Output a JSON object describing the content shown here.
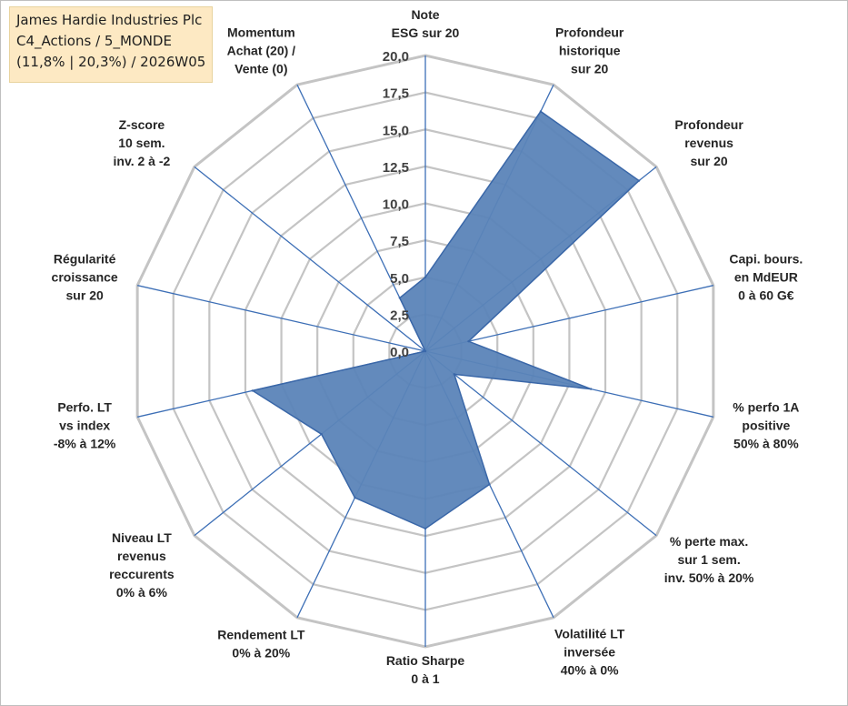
{
  "info_box": {
    "line1": "James Hardie Industries Plc",
    "line2": "C4_Actions / 5_MONDE",
    "line3": "(11,8% | 20,3%) / 2026W05"
  },
  "chart_data": {
    "type": "radar",
    "title": "",
    "rmin": 0,
    "rmax": 20,
    "tick_step": 2.5,
    "tick_labels": [
      "0,0",
      "2,5",
      "5,0",
      "7,5",
      "10,0",
      "12,5",
      "15,0",
      "17,5",
      "20,0"
    ],
    "grid": true,
    "legend": "none",
    "fill_color": "#5b84b8",
    "line_color": "#3a67a8",
    "grid_color": "#c4c4c4",
    "axis_color": "#3d6fb6",
    "axes": [
      {
        "label": [
          "Note",
          "ESG sur 20"
        ],
        "value": 5.0
      },
      {
        "label": [
          "Profondeur",
          "historique",
          "sur 20"
        ],
        "value": 18.0
      },
      {
        "label": [
          "Profondeur",
          "revenus",
          "sur 20"
        ],
        "value": 18.5
      },
      {
        "label": [
          "Capi. bours.",
          "en MdEUR",
          "0 à 60 G€"
        ],
        "value": 3.0
      },
      {
        "label": [
          "% perfo 1A",
          "positive",
          "50% à 80%"
        ],
        "value": 11.5
      },
      {
        "label": [
          "% perte max.",
          "sur 1 sem.",
          "inv. 50% à 20%"
        ],
        "value": 2.5
      },
      {
        "label": [
          "Volatilité LT",
          "inversée",
          "40% à 0%"
        ],
        "value": 10.0
      },
      {
        "label": [
          "Ratio Sharpe",
          "0 à 1"
        ],
        "value": 12.0
      },
      {
        "label": [
          "Rendement LT",
          "0% à 20%"
        ],
        "value": 11.0
      },
      {
        "label": [
          "Niveau LT",
          "revenus",
          "reccurents",
          "0% à 6%"
        ],
        "value": 9.0
      },
      {
        "label": [
          "Perfo. LT",
          "vs index",
          "-8% à 12%"
        ],
        "value": 12.0
      },
      {
        "label": [
          "Régularité",
          "croissance",
          "sur 20"
        ],
        "value": 0.0
      },
      {
        "label": [
          "Z-score",
          "10 sem.",
          "inv. 2 à -2"
        ],
        "value": 0.0
      },
      {
        "label": [
          "Momentum",
          "Achat (20) /",
          "Vente (0)"
        ],
        "value": 4.0
      }
    ]
  }
}
